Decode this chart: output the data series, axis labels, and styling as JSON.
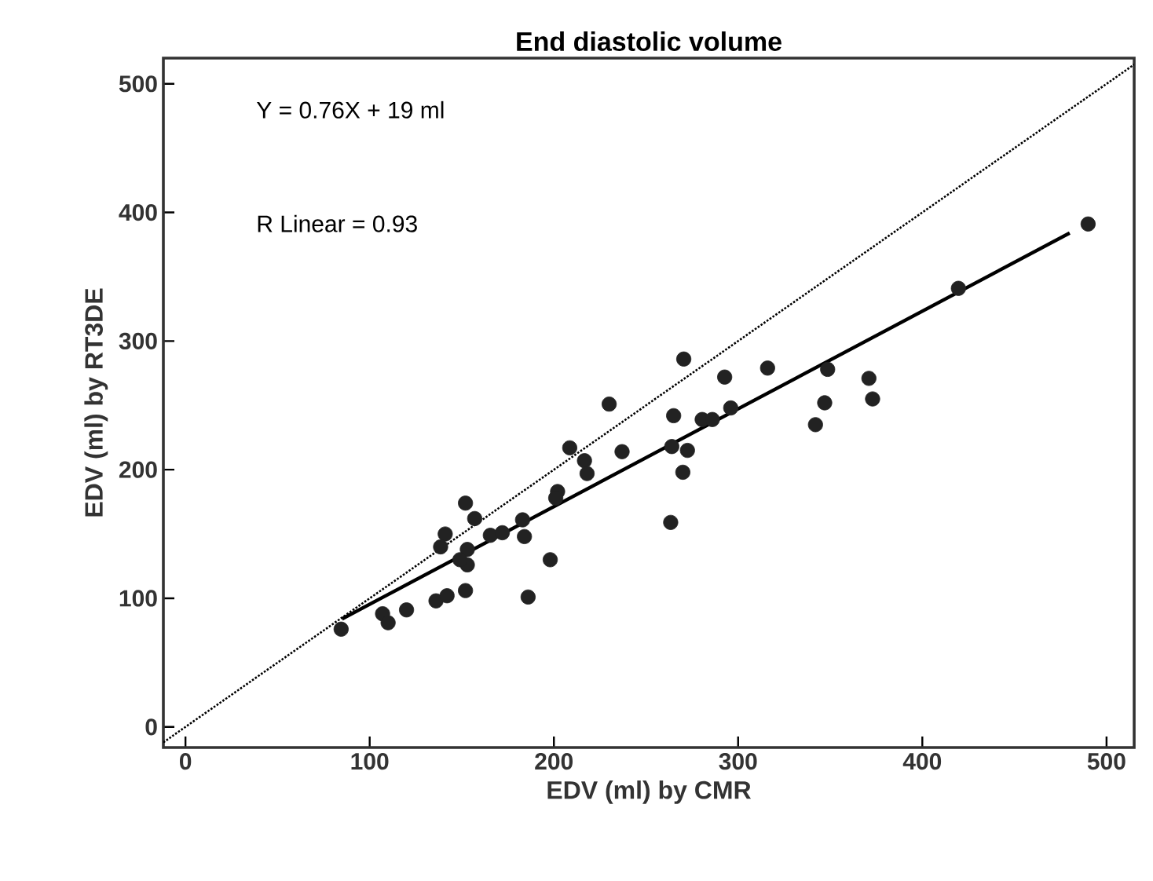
{
  "chart_data": {
    "type": "scatter",
    "title": "End diastolic volume",
    "xlabel": "EDV (ml) by CMR",
    "ylabel": "EDV (ml) by RT3DE",
    "xlim": [
      -12,
      515
    ],
    "ylim": [
      -16,
      520
    ],
    "xticks": [
      0,
      100,
      200,
      300,
      400,
      500
    ],
    "yticks": [
      0,
      100,
      200,
      300,
      400,
      500
    ],
    "annotations": [
      "Y = 0.76X + 19 ml",
      "R Linear = 0.93"
    ],
    "series": [
      {
        "type": "scatter",
        "marker": "circle",
        "color": "#222222",
        "x": [
          84.5,
          107,
          110,
          120,
          136,
          142,
          152,
          152,
          157,
          141,
          138.5,
          153,
          153,
          149,
          165.5,
          172,
          184,
          183,
          202,
          201,
          208.6,
          216.6,
          218,
          230,
          237,
          263.4,
          264,
          265,
          270.5,
          272.5,
          270,
          280.5,
          286,
          292.7,
          296,
          316,
          342,
          347,
          348.6,
          371,
          373,
          419.6,
          490,
          186,
          198
        ],
        "values": [
          76,
          88,
          81,
          91,
          98,
          102,
          106,
          174,
          162,
          150,
          140,
          138,
          126,
          130,
          149,
          151,
          148,
          161,
          183,
          178,
          217,
          207,
          197,
          251,
          214,
          159,
          218,
          242,
          286,
          215,
          198,
          239,
          239,
          272,
          248,
          279,
          235,
          252,
          278,
          271,
          255,
          341,
          391,
          101,
          130
        ]
      },
      {
        "type": "line",
        "marker": "none",
        "line_style": "solid",
        "color": "#000000",
        "x": [
          85,
          480
        ],
        "values": [
          84,
          384
        ]
      },
      {
        "type": "line",
        "marker": "none",
        "line_style": "dotted",
        "color": "#000000",
        "x": [
          -12,
          515
        ],
        "values": [
          -12,
          515
        ]
      }
    ]
  }
}
